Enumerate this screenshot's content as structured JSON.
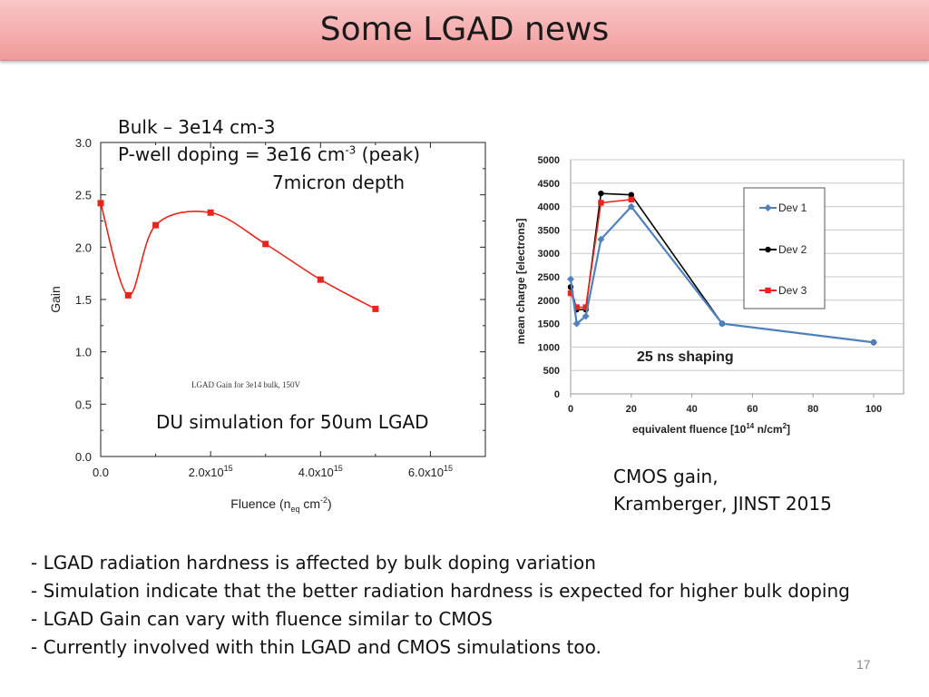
{
  "slide": {
    "title": "Some LGAD news",
    "page_number": "17"
  },
  "left_panel": {
    "annot_bulk": "Bulk – 3e14 cm-3",
    "annot_pwell_pre": "P-well doping = 3e16 cm",
    "annot_pwell_sup": "-3",
    "annot_pwell_post": " (peak)",
    "annot_depth": "7micron depth",
    "inner_caption": "LGAD Gain for 3e14 bulk, 150V",
    "du_caption": "DU simulation for 50um LGAD"
  },
  "right_panel": {
    "shaping_label": "25 ns shaping",
    "caption_line1": "CMOS gain,",
    "caption_line2": "Kramberger, JINST 2015"
  },
  "bullets": [
    "- LGAD radiation hardness is affected by bulk doping variation",
    "- Simulation indicate that the better radiation hardness is expected for higher bulk doping",
    "- LGAD Gain can vary with fluence similar to CMOS",
    "- Currently involved with thin LGAD and CMOS simulations too."
  ],
  "chart_data": [
    {
      "type": "line",
      "title": "",
      "xlabel": "Fluence (n_eq cm^-2)",
      "ylabel": "Gain",
      "xlim": [
        0,
        7000000000000000.0
      ],
      "ylim": [
        0,
        3.0
      ],
      "x_ticks": [
        0,
        2000000000000000.0,
        4000000000000000.0,
        6000000000000000.0
      ],
      "x_tick_labels": [
        {
          "mant": "0.0",
          "exp": ""
        },
        {
          "mant": "2.0x10",
          "exp": "15"
        },
        {
          "mant": "4.0x10",
          "exp": "15"
        },
        {
          "mant": "6.0x10",
          "exp": "15"
        }
      ],
      "y_ticks": [
        0,
        0.5,
        1.0,
        1.5,
        2.0,
        2.5,
        3.0
      ],
      "y_tick_labels": [
        "0.0",
        "0.5",
        "1.0",
        "1.5",
        "2.0",
        "2.5",
        "3.0"
      ],
      "color": "#e8241c",
      "series": [
        {
          "x": [
            0,
            500000000000000.0,
            1000000000000000.0,
            2000000000000000.0,
            3000000000000000.0,
            4000000000000000.0,
            5000000000000000.0
          ],
          "y": [
            2.42,
            1.54,
            2.21,
            2.33,
            2.03,
            1.69,
            1.41
          ]
        }
      ]
    },
    {
      "type": "line",
      "xlabel": "equivalent fluence [10^14 n/cm^2]",
      "ylabel": "mean charge [electrons]",
      "xlim": [
        0,
        100
      ],
      "ylim": [
        0,
        5000
      ],
      "x_ticks": [
        0,
        20,
        40,
        60,
        80,
        100
      ],
      "y_ticks": [
        0,
        500,
        1000,
        1500,
        2000,
        2500,
        3000,
        3500,
        4000,
        4500,
        5000
      ],
      "legend_position": "top-right",
      "series": [
        {
          "name": "Dev 1",
          "color": "#4f81bd",
          "marker": "diamond",
          "x": [
            0,
            2,
            5,
            10,
            20,
            50,
            100
          ],
          "y": [
            2450,
            1500,
            1660,
            3300,
            4000,
            1500,
            1100
          ]
        },
        {
          "name": "Dev 2",
          "color": "#000000",
          "marker": "circle",
          "x": [
            0,
            2,
            5,
            10,
            20,
            50,
            100
          ],
          "y": [
            2280,
            1800,
            1800,
            4280,
            4250,
            1500,
            1100
          ]
        },
        {
          "name": "Dev 3",
          "color": "#e8241c",
          "marker": "square",
          "x": [
            0,
            2,
            5,
            10,
            20
          ],
          "y": [
            2150,
            1850,
            1850,
            4080,
            4150
          ]
        }
      ]
    }
  ]
}
